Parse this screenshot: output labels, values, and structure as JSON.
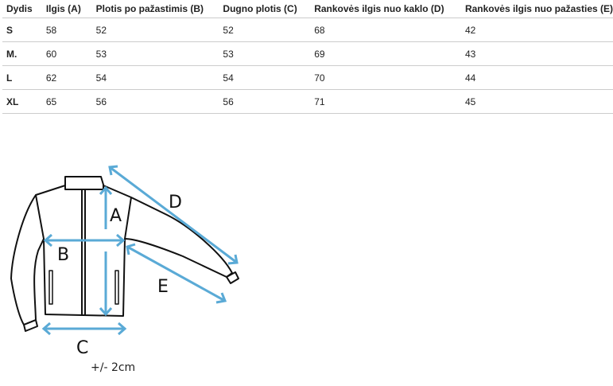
{
  "table": {
    "headers": [
      "Dydis",
      "Ilgis (A)",
      "Plotis po pažastimis (B)",
      "Dugno plotis (C)",
      "Rankovės ilgis nuo kaklo (D)",
      "Rankovės ilgis nuo pažasties (E)"
    ],
    "rows": [
      [
        "S",
        "58",
        "52",
        "52",
        "68",
        "42"
      ],
      [
        "M.",
        "60",
        "53",
        "53",
        "69",
        "43"
      ],
      [
        "L",
        "62",
        "54",
        "54",
        "70",
        "44"
      ],
      [
        "XL",
        "65",
        "56",
        "56",
        "71",
        "45"
      ]
    ]
  },
  "diagram": {
    "labels": {
      "a": "A",
      "b": "B",
      "c": "C",
      "d": "D",
      "e": "E"
    },
    "tolerance": "+/- 2cm",
    "arrow_color": "#5aaad6"
  }
}
